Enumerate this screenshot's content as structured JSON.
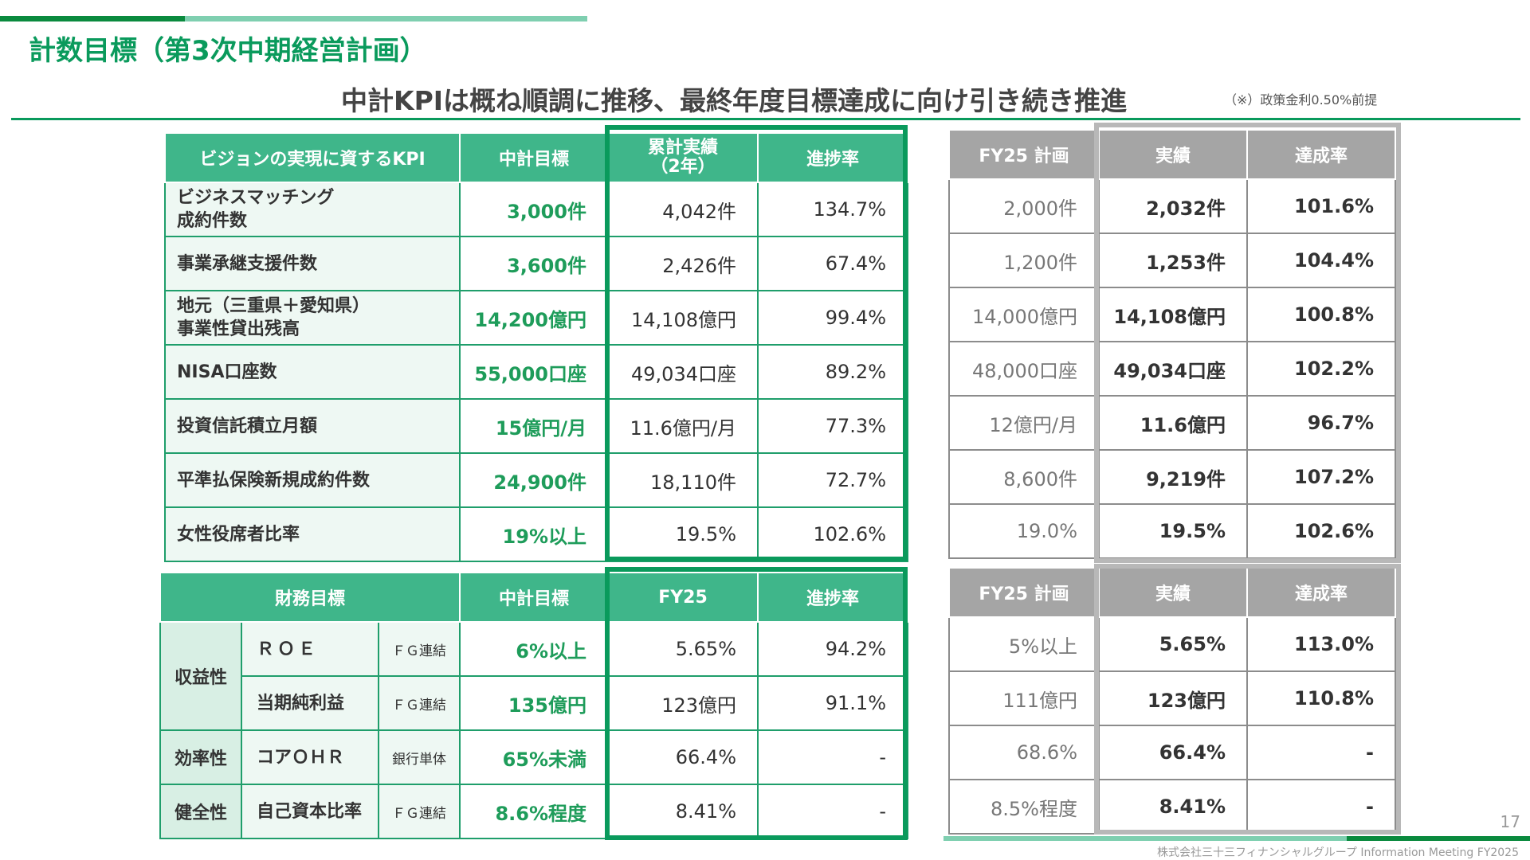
{
  "header": {
    "title": "計数目標（第3次中期経営計画）",
    "headline": "中計KPIは概ね順調に推移、最終年度目標達成に向け引き続き推進",
    "note": "（※）政策金利0.50%前提"
  },
  "kpi_table": {
    "headers": [
      "ビジョンの実現に資するKPI",
      "中計目標",
      "累計実績\n（2年）",
      "進捗率"
    ],
    "rows": [
      {
        "label": "ビジネスマッチング\n成約件数",
        "target": "3,000件",
        "actual": "4,042件",
        "rate": "134.7%"
      },
      {
        "label": "事業承継支援件数",
        "target": "3,600件",
        "actual": "2,426件",
        "rate": "67.4%"
      },
      {
        "label": "地元（三重県＋愛知県）\n事業性貸出残高",
        "target": "14,200億円",
        "actual": "14,108億円",
        "rate": "99.4%"
      },
      {
        "label": "NISA口座数",
        "target": "55,000口座",
        "actual": "49,034口座",
        "rate": "89.2%"
      },
      {
        "label": "投資信託積立月額",
        "target": "15億円/月",
        "actual": "11.6億円/月",
        "rate": "77.3%"
      },
      {
        "label": "平準払保険新規成約件数",
        "target": "24,900件",
        "actual": "18,110件",
        "rate": "72.7%"
      },
      {
        "label": "女性役席者比率",
        "target": "19%以上",
        "actual": "19.5%",
        "rate": "102.6%"
      }
    ]
  },
  "fy25_kpi_table": {
    "headers": [
      "FY25 計画",
      "実績",
      "達成率"
    ],
    "rows": [
      {
        "plan": "2,000件",
        "actual": "2,032件",
        "rate": "101.6%"
      },
      {
        "plan": "1,200件",
        "actual": "1,253件",
        "rate": "104.4%"
      },
      {
        "plan": "14,000億円",
        "actual": "14,108億円",
        "rate": "100.8%"
      },
      {
        "plan": "48,000口座",
        "actual": "49,034口座",
        "rate": "102.2%"
      },
      {
        "plan": "12億円/月",
        "actual": "11.6億円",
        "rate": "96.7%"
      },
      {
        "plan": "8,600件",
        "actual": "9,219件",
        "rate": "107.2%"
      },
      {
        "plan": "19.0%",
        "actual": "19.5%",
        "rate": "102.6%"
      }
    ]
  },
  "fin_table": {
    "headers": [
      "財務目標",
      "中計目標",
      "FY25",
      "進捗率"
    ],
    "groups": {
      "profit": "収益性",
      "efficiency": "効率性",
      "soundness": "健全性"
    },
    "rows": [
      {
        "label": "ＲＯＥ",
        "scope": "ＦＧ連結",
        "target": "6%以上",
        "actual": "5.65%",
        "rate": "94.2%"
      },
      {
        "label": "当期純利益",
        "scope": "ＦＧ連結",
        "target": "135億円",
        "actual": "123億円",
        "rate": "91.1%"
      },
      {
        "label": "コアＯＨＲ",
        "scope": "銀行単体",
        "target": "65%未満",
        "actual": "66.4%",
        "rate": "-"
      },
      {
        "label": "自己資本比率",
        "scope": "ＦＧ連結",
        "target": "8.6%程度",
        "actual": "8.41%",
        "rate": "-"
      }
    ]
  },
  "fy25_fin_table": {
    "headers": [
      "FY25 計画",
      "実績",
      "達成率"
    ],
    "rows": [
      {
        "plan": "5%以上",
        "actual": "5.65%",
        "rate": "113.0%"
      },
      {
        "plan": "111億円",
        "actual": "123億円",
        "rate": "110.8%"
      },
      {
        "plan": "68.6%",
        "actual": "66.4%",
        "rate": "-"
      },
      {
        "plan": "8.5%程度",
        "actual": "8.41%",
        "rate": "-"
      }
    ]
  },
  "footer": {
    "page": "17",
    "company": "株式会社三十三フィナンシャルグループ Information Meeting FY2025"
  },
  "colors": {
    "brand_green": "#0a9a5c",
    "header_green": "#3fb68a",
    "gray": "#a5a5a5"
  }
}
